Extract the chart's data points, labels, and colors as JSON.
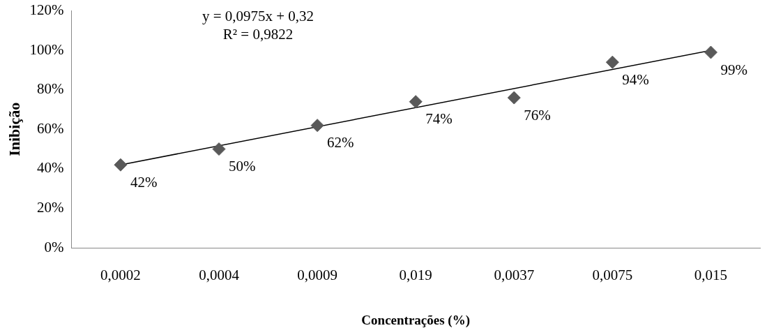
{
  "chart_data": {
    "type": "scatter",
    "xlabel": "Concentrações (%)",
    "ylabel": "Inibição",
    "categories": [
      "0,0002",
      "0,0004",
      "0,0009",
      "0,019",
      "0,0037",
      "0,0075",
      "0,015"
    ],
    "ylim": [
      0,
      120
    ],
    "yticks": [
      {
        "value": 0,
        "label": "0%"
      },
      {
        "value": 20,
        "label": "20%"
      },
      {
        "value": 40,
        "label": "40%"
      },
      {
        "value": 60,
        "label": "60%"
      },
      {
        "value": 80,
        "label": "80%"
      },
      {
        "value": 100,
        "label": "100%"
      },
      {
        "value": 120,
        "label": "120%"
      }
    ],
    "grid": false,
    "legend": false,
    "marker": "diamond",
    "annotations": [
      "y = 0,0975x + 0,32",
      "R² = 0,9822"
    ],
    "series": [
      {
        "color": "#595959",
        "values": [
          42,
          50,
          62,
          74,
          76,
          94,
          99
        ],
        "value_labels": [
          "42%",
          "50%",
          "62%",
          "74%",
          "76%",
          "94%",
          "99%"
        ]
      },
      {
        "type": "line",
        "marker": "none",
        "color": "#000000",
        "x": [
          "0,0002",
          "0,015"
        ],
        "values": [
          42,
          100
        ]
      }
    ]
  }
}
